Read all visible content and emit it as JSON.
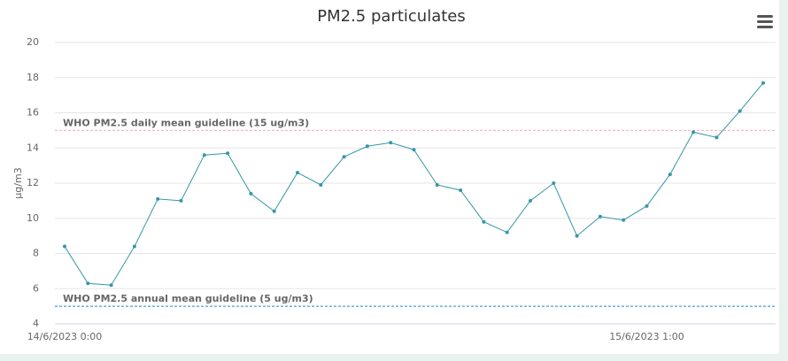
{
  "chart_data": {
    "type": "line",
    "title": "PM2.5 particulates",
    "y_label": "µg/m3",
    "categories": [
      "14/6/2023 0:00",
      null,
      null,
      null,
      null,
      null,
      null,
      null,
      null,
      null,
      null,
      null,
      null,
      null,
      null,
      null,
      null,
      null,
      null,
      null,
      null,
      null,
      null,
      null,
      null,
      "15/6/2023 1:00",
      null,
      null,
      null,
      null,
      null
    ],
    "series": [
      {
        "name": "PM2.5",
        "color": "#3497a8",
        "values": [
          8.4,
          6.3,
          6.2,
          8.4,
          11.1,
          11.0,
          13.6,
          13.7,
          11.4,
          10.4,
          12.6,
          11.9,
          13.5,
          14.1,
          14.3,
          13.9,
          11.9,
          11.6,
          9.8,
          9.2,
          11.0,
          12.0,
          9.0,
          10.1,
          9.9,
          10.7,
          12.5,
          14.9,
          14.6,
          16.1,
          17.7
        ]
      }
    ],
    "ylim": [
      4,
      20
    ],
    "yticks": [
      4,
      6,
      8,
      10,
      12,
      14,
      16,
      18,
      20
    ],
    "grid": true,
    "plot_lines": [
      {
        "value": 15,
        "label": "WHO PM2.5 daily mean guideline (15 ug/m3)",
        "color": "#f4a9b5"
      },
      {
        "value": 5,
        "label": "WHO PM2.5 annual mean guideline (5 ug/m3)",
        "color": "#1a86d0"
      }
    ]
  }
}
